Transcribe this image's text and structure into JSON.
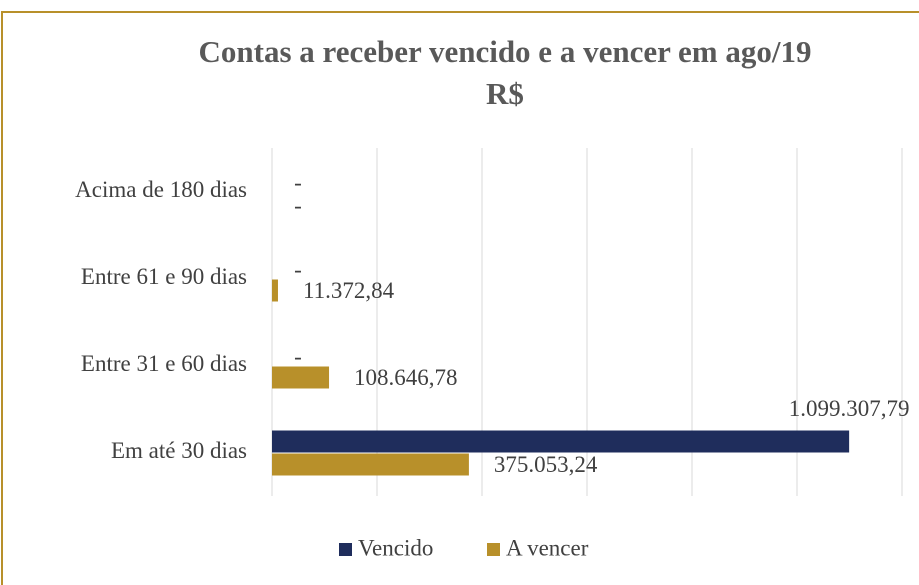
{
  "chart_data": {
    "type": "hbar",
    "title": [
      "Contas a receber vencido e a vencer em ago/19",
      "R$"
    ],
    "categories": [
      "Acima de 180 dias",
      "Entre 61 e 90 dias",
      "Entre 31 e 60 dias",
      "Em até 30 dias"
    ],
    "series": [
      {
        "name": "Vencido",
        "color": "#1f2d5c",
        "values": [
          0,
          0,
          0,
          1099307.79
        ],
        "value_labels": [
          "-",
          "-",
          "-",
          "1.099.307,79"
        ]
      },
      {
        "name": "A vencer",
        "color": "#b8902a",
        "values": [
          0,
          11372.84,
          108646.78,
          375053.24
        ],
        "value_labels": [
          "-",
          "11.372,84",
          "108.646,78",
          "375.053,24"
        ]
      }
    ],
    "xlim": [
      0,
      1200000
    ],
    "xticks": [
      0,
      200000,
      400000,
      600000,
      800000,
      1000000,
      1200000
    ],
    "grid": true,
    "legend": "bottom"
  }
}
